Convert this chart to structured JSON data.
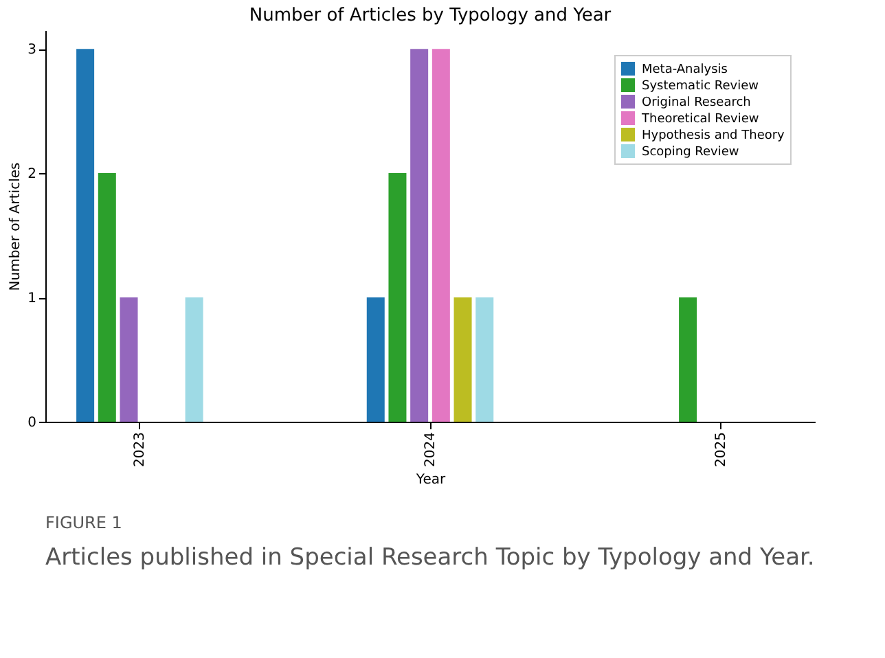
{
  "chart_data": {
    "type": "bar",
    "title": "Number of Articles by Typology and Year",
    "xlabel": "Year",
    "ylabel": "Number of Articles",
    "categories": [
      "2023",
      "2024",
      "2025"
    ],
    "series": [
      {
        "name": "Meta-Analysis",
        "color": "#1f77b4",
        "values": [
          3,
          1,
          0
        ]
      },
      {
        "name": "Systematic Review",
        "color": "#2ca02c",
        "values": [
          2,
          2,
          1
        ]
      },
      {
        "name": "Original Research",
        "color": "#9467bd",
        "values": [
          1,
          3,
          0
        ]
      },
      {
        "name": "Theoretical Review",
        "color": "#e377c2",
        "values": [
          0,
          3,
          0
        ]
      },
      {
        "name": "Hypothesis and Theory",
        "color": "#bcbd22",
        "values": [
          0,
          1,
          0
        ]
      },
      {
        "name": "Scoping Review",
        "color": "#9edae5",
        "values": [
          1,
          1,
          0
        ]
      }
    ],
    "ylim": [
      0,
      3.15
    ],
    "yticks": [
      0,
      1,
      2,
      3
    ],
    "grid": false,
    "legend": "top right",
    "annotations": [
      "FIGURE 1",
      "Articles published in Special Research Topic by Typology and Year."
    ]
  }
}
